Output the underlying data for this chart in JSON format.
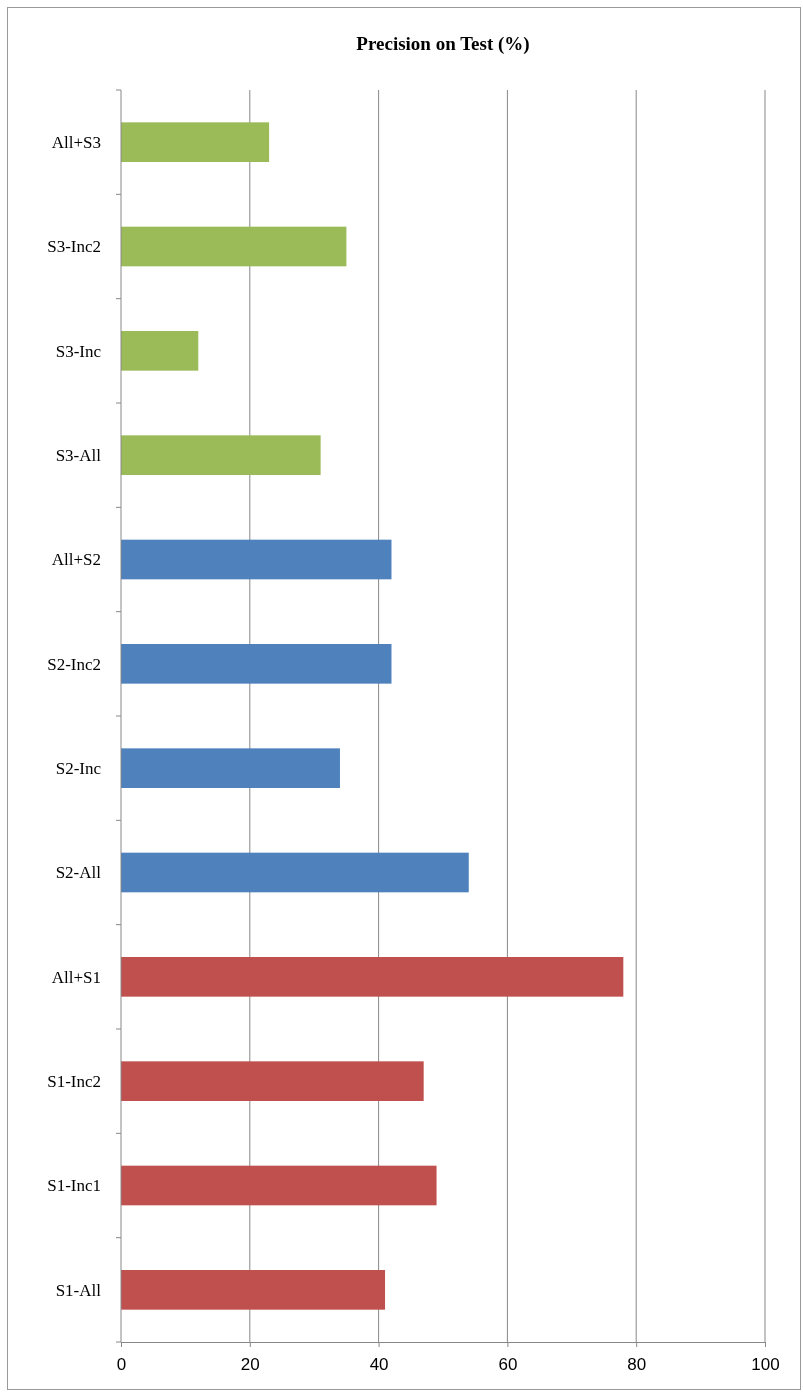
{
  "chart_data": {
    "type": "bar",
    "orientation": "horizontal",
    "title": "Precision on Test (%)",
    "categories": [
      "All+S3",
      "S3-Inc2",
      "S3-Inc",
      "S3-All",
      "All+S2",
      "S2-Inc2",
      "S2-Inc",
      "S2-All",
      "All+S1",
      "S1-Inc2",
      "S1-Inc1",
      "S1-All"
    ],
    "values": [
      23,
      35,
      12,
      31,
      42,
      42,
      34,
      54,
      78,
      47,
      49,
      41
    ],
    "colors": [
      "#9bbb59",
      "#9bbb59",
      "#9bbb59",
      "#9bbb59",
      "#4f81bd",
      "#4f81bd",
      "#4f81bd",
      "#4f81bd",
      "#c0504d",
      "#c0504d",
      "#c0504d",
      "#c0504d"
    ],
    "xlim": [
      0,
      100
    ],
    "xticks": [
      0,
      20,
      40,
      60,
      80,
      100
    ],
    "grid": "x"
  }
}
